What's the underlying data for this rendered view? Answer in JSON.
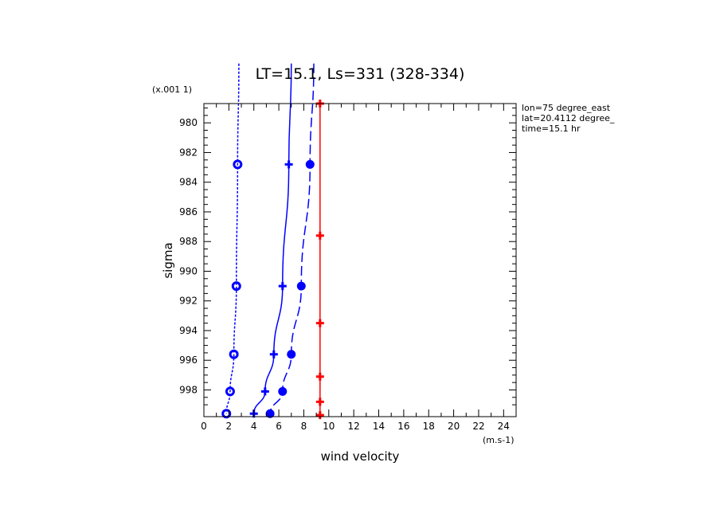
{
  "chart_data": {
    "type": "line",
    "title": "LT=15.1, Ls=331 (328-334)",
    "xlabel": "wind velocity",
    "ylabel": "sigma",
    "x_units": "(m.s-1)",
    "y_units": "(x.001 1)",
    "xlim": [
      0,
      25
    ],
    "ylim": [
      978.7,
      999.8
    ],
    "y_inverted": true,
    "x_ticks": [
      0,
      2,
      4,
      6,
      8,
      10,
      12,
      14,
      16,
      18,
      20,
      22,
      24
    ],
    "y_ticks": [
      980,
      982,
      984,
      986,
      988,
      990,
      992,
      994,
      996,
      998
    ],
    "annotations": [
      "lon=75 degree_east",
      "lat=20.4112 degree_",
      "time=15.1 hr"
    ],
    "grid": false,
    "series": [
      {
        "style": "dotted",
        "color": "#0000ff",
        "marker": "circle-dot",
        "points": [
          [
            2.7,
            982.8
          ],
          [
            2.6,
            991.0
          ],
          [
            2.4,
            995.6
          ],
          [
            2.1,
            998.1
          ],
          [
            1.8,
            999.6
          ]
        ],
        "extend_to": [
          2.8,
          976.0
        ]
      },
      {
        "style": "solid",
        "color": "#0000ff",
        "marker": "cross",
        "points": [
          [
            6.8,
            982.8
          ],
          [
            6.3,
            991.0
          ],
          [
            5.6,
            995.6
          ],
          [
            4.9,
            998.1
          ],
          [
            4.0,
            999.6
          ]
        ],
        "extend_to": [
          7.0,
          976.0
        ]
      },
      {
        "style": "dashed",
        "color": "#0000ff",
        "marker": "circle",
        "points": [
          [
            8.5,
            982.8
          ],
          [
            7.8,
            991.0
          ],
          [
            7.0,
            995.6
          ],
          [
            6.3,
            998.1
          ],
          [
            5.3,
            999.6
          ]
        ],
        "extend_to": [
          8.8,
          976.0
        ]
      },
      {
        "style": "solid",
        "color": "#ff0000",
        "marker": "cross",
        "points": [
          [
            9.3,
            978.7
          ],
          [
            9.3,
            987.6
          ],
          [
            9.3,
            993.5
          ],
          [
            9.3,
            997.1
          ],
          [
            9.3,
            998.8
          ],
          [
            9.3,
            999.7
          ]
        ]
      }
    ]
  }
}
